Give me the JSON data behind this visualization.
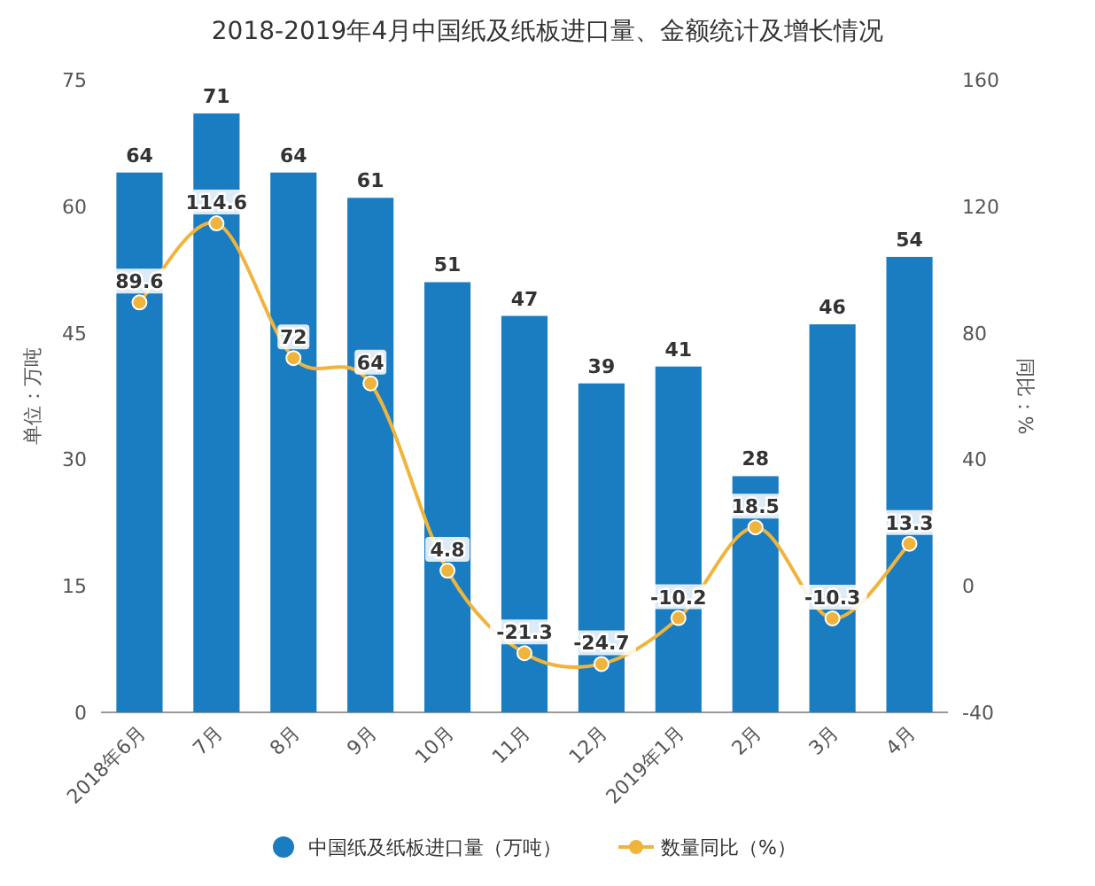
{
  "chart_data": {
    "type": "bar",
    "title": "2018-2019年4月中国纸及纸板进口量、金额统计及增长情况",
    "categories": [
      "2018年6月",
      "7月",
      "8月",
      "9月",
      "10月",
      "11月",
      "12月",
      "2019年1月",
      "2月",
      "3月",
      "4月"
    ],
    "series": [
      {
        "name": "中国纸及纸板进口量（万吨）",
        "color": "#1a7cc1",
        "values": [
          64,
          71,
          64,
          61,
          51,
          47,
          39,
          41,
          28,
          46,
          54
        ]
      },
      {
        "name": "数量同比（%）",
        "type": "line",
        "axis": "y2",
        "color": "#f0b43c",
        "marker": "circle",
        "values": [
          89.6,
          114.6,
          72,
          64,
          4.8,
          -21.3,
          -24.7,
          -10.2,
          18.5,
          -10.3,
          13.3
        ]
      }
    ],
    "ylabel": "单位：万吨",
    "y2label": "同比：%",
    "ylim": [
      0,
      75
    ],
    "yticks": [
      0,
      15,
      30,
      45,
      60,
      75
    ],
    "y2lim": [
      -40,
      160
    ],
    "y2ticks": [
      -40,
      0,
      40,
      80,
      120,
      160
    ],
    "data_labels": true,
    "grid": false,
    "legend": "bottom"
  }
}
